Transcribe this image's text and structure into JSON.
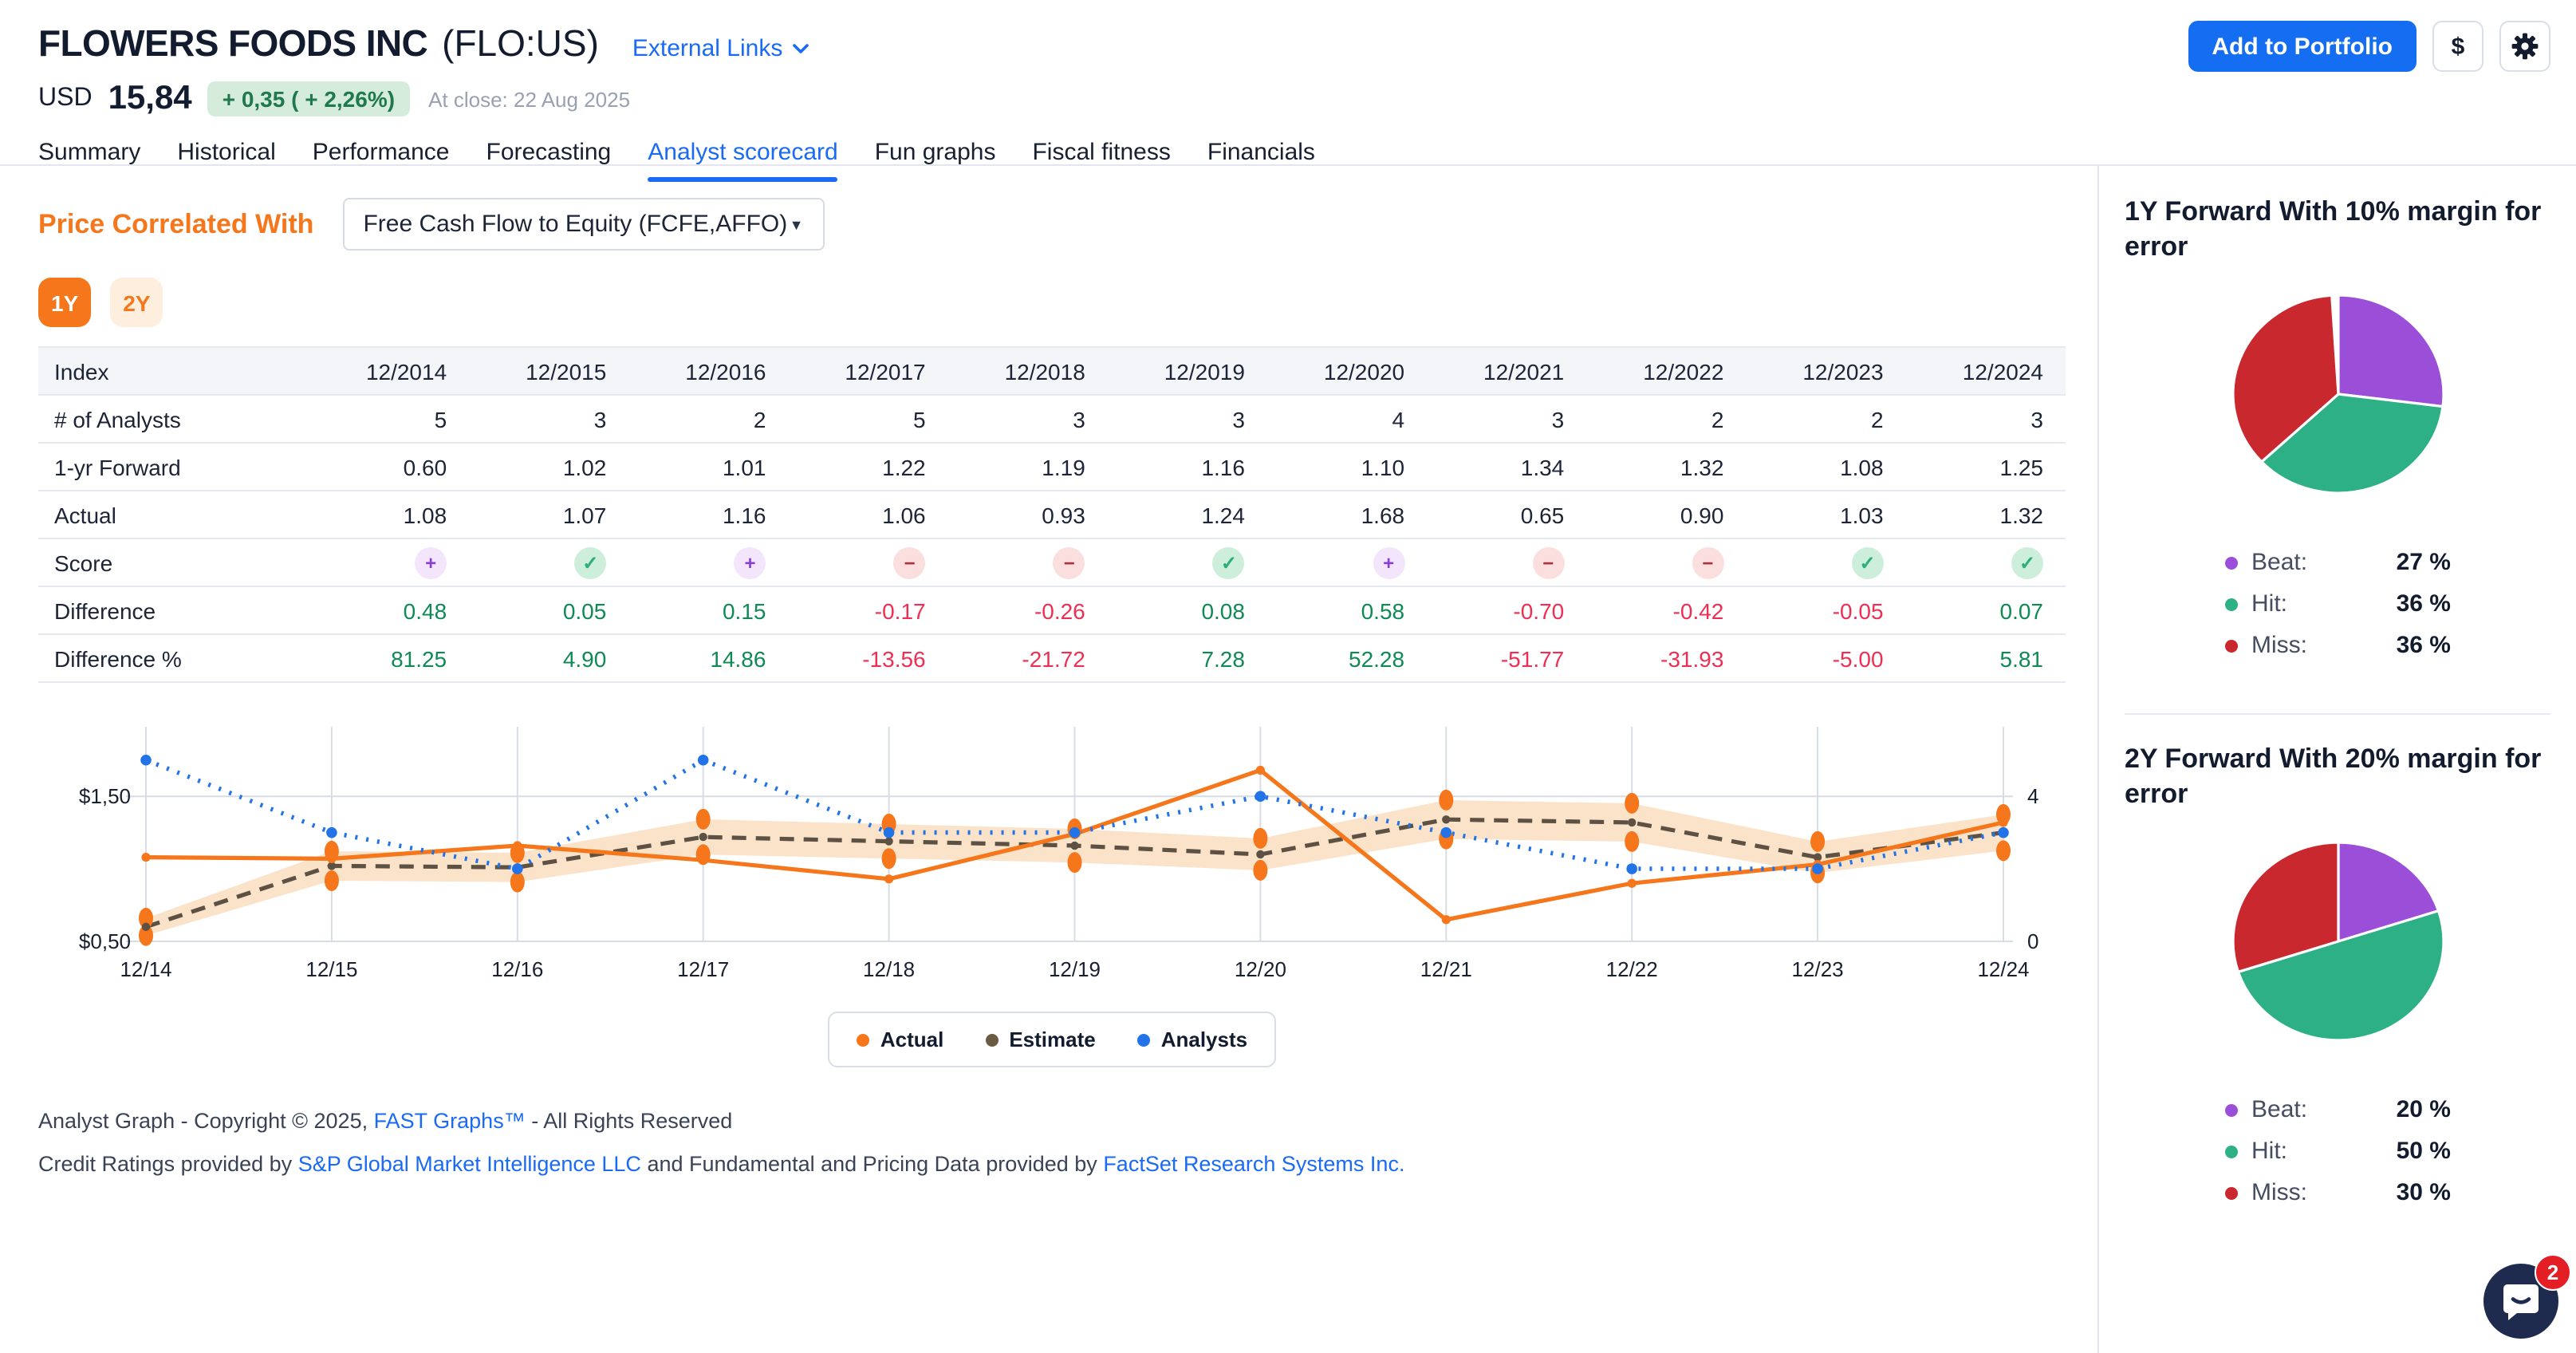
{
  "header": {
    "company": "FLOWERS FOODS INC",
    "ticker": "(FLO:US)",
    "external_links": "External Links",
    "currency_label": "USD",
    "price": "15,84",
    "change_badge": "+ 0,35 ( + 2,26%)",
    "close_note": "At close: 22 Aug 2025",
    "add_to_portfolio": "Add to Portfolio",
    "dollar_label": "$",
    "tabs": [
      "Summary",
      "Historical",
      "Performance",
      "Forecasting",
      "Analyst scorecard",
      "Fun graphs",
      "Fiscal fitness",
      "Financials"
    ],
    "active_tab": "Analyst scorecard"
  },
  "controls": {
    "label": "Price Correlated With",
    "metric": "Free Cash Flow to Equity (FCFE,AFFO)",
    "ranges": [
      "1Y",
      "2Y"
    ],
    "active_range": "1Y"
  },
  "scorecard_table": {
    "index_label": "Index",
    "columns": [
      "12/2014",
      "12/2015",
      "12/2016",
      "12/2017",
      "12/2018",
      "12/2019",
      "12/2020",
      "12/2021",
      "12/2022",
      "12/2023",
      "12/2024"
    ],
    "rows": [
      {
        "label": "# of Analysts",
        "type": "number",
        "values": [
          "5",
          "3",
          "2",
          "5",
          "3",
          "3",
          "4",
          "3",
          "2",
          "2",
          "3"
        ]
      },
      {
        "label": "1-yr Forward",
        "type": "number",
        "values": [
          "0.60",
          "1.02",
          "1.01",
          "1.22",
          "1.19",
          "1.16",
          "1.10",
          "1.34",
          "1.32",
          "1.08",
          "1.25"
        ]
      },
      {
        "label": "Actual",
        "type": "number",
        "values": [
          "1.08",
          "1.07",
          "1.16",
          "1.06",
          "0.93",
          "1.24",
          "1.68",
          "0.65",
          "0.90",
          "1.03",
          "1.32"
        ]
      },
      {
        "label": "Score",
        "type": "score",
        "values": [
          "beat",
          "hit",
          "beat",
          "miss",
          "miss",
          "hit",
          "beat",
          "miss",
          "miss",
          "hit",
          "hit"
        ]
      },
      {
        "label": "Difference",
        "type": "signed",
        "values": [
          "0.48",
          "0.05",
          "0.15",
          "-0.17",
          "-0.26",
          "0.08",
          "0.58",
          "-0.70",
          "-0.42",
          "-0.05",
          "0.07"
        ]
      },
      {
        "label": "Difference %",
        "type": "signed",
        "values": [
          "81.25",
          "4.90",
          "14.86",
          "-13.56",
          "-21.72",
          "7.28",
          "52.28",
          "-51.77",
          "-31.93",
          "-5.00",
          "5.81"
        ]
      }
    ],
    "score_icons": {
      "beat": {
        "glyph": "+",
        "fg": "#8a3fd4",
        "bg": "#f2e5fc"
      },
      "hit": {
        "glyph": "✓",
        "fg": "#2fae7d",
        "bg": "#cceedb"
      },
      "miss": {
        "glyph": "−",
        "fg": "#ae2f3f",
        "bg": "#fbdede"
      }
    }
  },
  "chart_data": [
    {
      "type": "line",
      "x": [
        "12/14",
        "12/15",
        "12/16",
        "12/17",
        "12/18",
        "12/19",
        "12/20",
        "12/21",
        "12/22",
        "12/23",
        "12/24"
      ],
      "series": [
        {
          "name": "Actual",
          "color": "#f5761b",
          "values": [
            1.08,
            1.07,
            1.16,
            1.06,
            0.93,
            1.24,
            1.68,
            0.65,
            0.9,
            1.03,
            1.32
          ]
        },
        {
          "name": "Estimate",
          "color": "#5d5144",
          "values": [
            0.6,
            1.02,
            1.01,
            1.22,
            1.19,
            1.16,
            1.1,
            1.34,
            1.32,
            1.08,
            1.25
          ]
        },
        {
          "name": "Analysts",
          "color": "#2273e8",
          "axis": "right",
          "values": [
            5,
            3,
            2,
            5,
            3,
            3,
            4,
            3,
            2,
            2,
            3
          ]
        }
      ],
      "band": {
        "around": "Estimate",
        "margin_pct": 10,
        "color": "#fbe3c9"
      },
      "y_ticks": [
        {
          "value": 1.5,
          "label": "$1,50"
        },
        {
          "value": 0.5,
          "label": "$0,50"
        }
      ],
      "right_ticks": [
        {
          "value": 4,
          "label": "4"
        },
        {
          "value": 0,
          "label": "0"
        }
      ],
      "analysts_axis": {
        "min": 0,
        "max": 4,
        "price_min": 0.5,
        "price_max": 1.5
      },
      "grid_color": "#d8dce5",
      "legend": [
        {
          "label": "Actual",
          "color": "#f5761b"
        },
        {
          "label": "Estimate",
          "color": "#6b5b45"
        },
        {
          "label": "Analysts",
          "color": "#2273e8"
        }
      ],
      "legend_position": "bottom-center",
      "grid": true
    },
    {
      "type": "pie",
      "title": "1Y Forward With 10% margin for error",
      "labels": [
        "Beat",
        "Hit",
        "Miss"
      ],
      "values": [
        27,
        36,
        36
      ],
      "colors": [
        "#9b4fd8",
        "#2eb086",
        "#c9282f"
      ]
    },
    {
      "type": "pie",
      "title": "2Y Forward With 20% margin for error",
      "labels": [
        "Beat",
        "Hit",
        "Miss"
      ],
      "values": [
        20,
        50,
        30
      ],
      "colors": [
        "#9b4fd8",
        "#2eb086",
        "#c9282f"
      ]
    }
  ],
  "sidebar": {
    "sections": [
      {
        "title": "1Y Forward With 10% margin for error",
        "chart_index": 1,
        "legend": [
          {
            "label": "Beat:",
            "value": "27 %",
            "color": "#9b4fd8"
          },
          {
            "label": "Hit:",
            "value": "36 %",
            "color": "#2eb086"
          },
          {
            "label": "Miss:",
            "value": "36 %",
            "color": "#c9282f"
          }
        ]
      },
      {
        "title": "2Y Forward With 20% margin for error",
        "chart_index": 2,
        "legend": [
          {
            "label": "Beat:",
            "value": "20 %",
            "color": "#9b4fd8"
          },
          {
            "label": "Hit:",
            "value": "50 %",
            "color": "#2eb086"
          },
          {
            "label": "Miss:",
            "value": "30 %",
            "color": "#c9282f"
          }
        ]
      }
    ]
  },
  "footer": {
    "line1_pre": "Analyst Graph - Copyright © 2025, ",
    "line1_link": "FAST Graphs™",
    "line1_post": " - All Rights Reserved",
    "line2_pre": "Credit Ratings provided by ",
    "line2_link1": "S&P Global Market Intelligence LLC",
    "line2_mid": " and Fundamental and Pricing Data provided by ",
    "line2_link2": "FactSet Research Systems Inc."
  },
  "chat": {
    "badge": "2"
  }
}
